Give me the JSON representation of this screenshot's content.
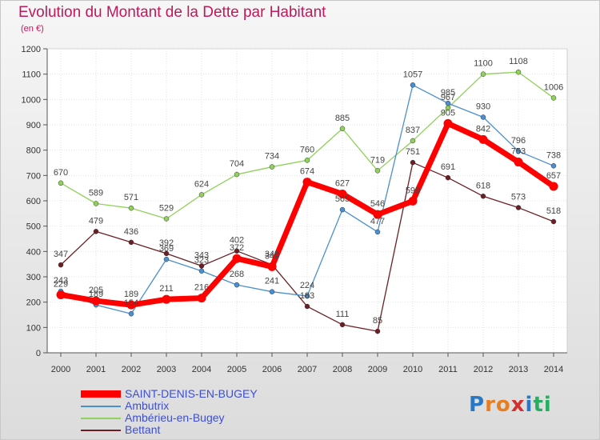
{
  "title": "Evolution du Montant de la Dette par Habitant",
  "subtitle": "(en €)",
  "brand": {
    "letters": [
      "P",
      "r",
      "o",
      "x",
      "i",
      "t",
      "i"
    ],
    "colors": [
      "#2a78c4",
      "#e67e22",
      "#e67e22",
      "#d32f2f",
      "#2a78c4",
      "#27ae60",
      "#27ae60"
    ]
  },
  "chart_data": {
    "type": "line",
    "x": [
      "2000",
      "2001",
      "2002",
      "2003",
      "2004",
      "2005",
      "2006",
      "2007",
      "2008",
      "2009",
      "2010",
      "2011",
      "2012",
      "2013",
      "2014"
    ],
    "ylim": [
      0,
      1200
    ],
    "yticks": [
      "0",
      "100",
      "200",
      "300",
      "400",
      "500",
      "600",
      "700",
      "800",
      "900",
      "1000",
      "1100",
      "1200"
    ],
    "grid": true,
    "legend_position": "bottom-left",
    "series": [
      {
        "name": "Bettant",
        "color": "#6b1f24",
        "width": 1.3,
        "values": [
          347,
          479,
          436,
          392,
          343,
          402,
          348,
          183,
          111,
          85,
          751,
          691,
          618,
          573,
          518
        ],
        "labels": [
          "347",
          "479",
          "436",
          "392",
          "343",
          "402",
          "348",
          "183",
          "111",
          "85",
          "751",
          "691",
          "618",
          "573",
          "518"
        ]
      },
      {
        "name": "Ambérieu-en-Bugey",
        "color": "#8fd15a",
        "width": 1.3,
        "values": [
          670,
          589,
          571,
          529,
          624,
          704,
          734,
          760,
          885,
          719,
          837,
          967,
          1100,
          1108,
          1006
        ],
        "labels": [
          "670",
          "589",
          "571",
          "529",
          "624",
          "704",
          "734",
          "760",
          "885",
          "719",
          "837",
          "967",
          "1100",
          "1108",
          "1006"
        ]
      },
      {
        "name": "Ambutrix",
        "color": "#4a8fcf",
        "width": 1.3,
        "values": [
          243,
          189,
          154,
          369,
          323,
          268,
          241,
          224,
          565,
          477,
          1057,
          985,
          930,
          796,
          738
        ],
        "labels": [
          "243",
          "189",
          "154",
          "369",
          "323",
          "268",
          "241",
          "224",
          "565",
          "477",
          "1057",
          "985",
          "930",
          "796",
          "738"
        ]
      },
      {
        "name": "SAINT-DENIS-EN-BUGEY",
        "color": "#ff0000",
        "width": 7,
        "values": [
          229,
          205,
          189,
          211,
          216,
          372,
          340,
          674,
          627,
          546,
          599,
          905,
          842,
          753,
          657
        ],
        "labels": [
          "229",
          "205",
          "189",
          "211",
          "216",
          "372",
          "340",
          "674",
          "627",
          "546",
          "599",
          "905",
          "842",
          "753",
          "657"
        ]
      }
    ]
  }
}
